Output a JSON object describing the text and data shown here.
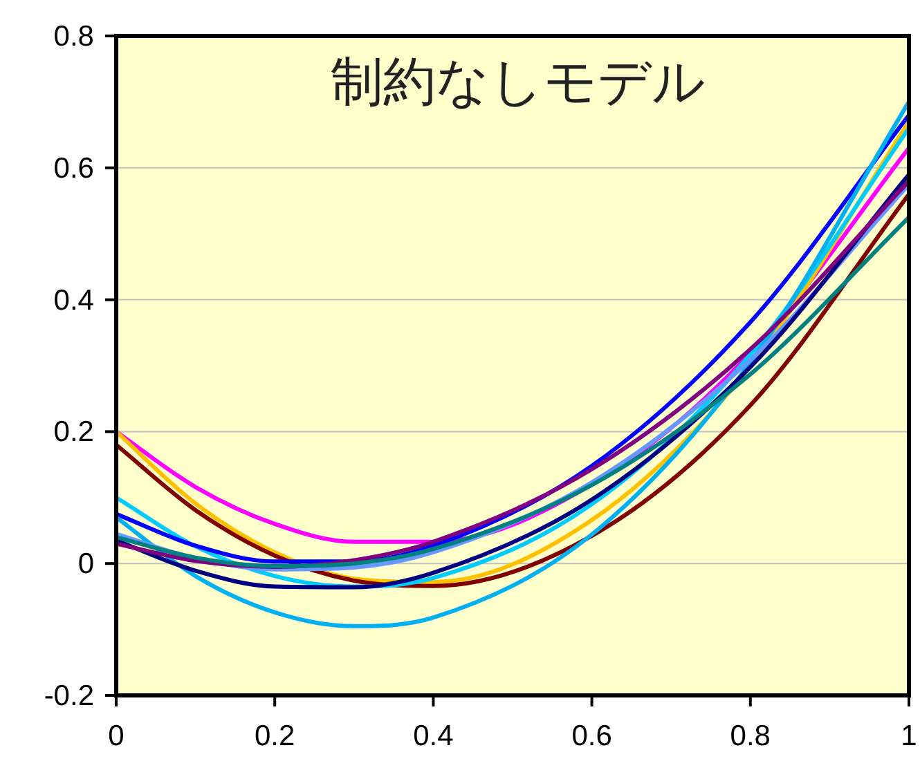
{
  "chart_data": {
    "type": "line",
    "title": "制約なしモデル",
    "x": [
      0,
      0.1,
      0.2,
      0.3,
      0.4,
      0.6,
      0.8,
      1
    ],
    "series": [
      {
        "color": "#ff00ff",
        "values": [
          0.2,
          0.116,
          0.06,
          0.033,
          0.033,
          0.12,
          0.319,
          0.63
        ]
      },
      {
        "color": "#ffc000",
        "values": [
          0.2,
          0.091,
          0.017,
          -0.023,
          -0.028,
          0.066,
          0.299,
          0.67
        ]
      },
      {
        "color": "#800000",
        "values": [
          0.18,
          0.081,
          0.012,
          -0.026,
          -0.034,
          0.042,
          0.24,
          0.56
        ]
      },
      {
        "color": "#00ccff",
        "values": [
          0.1,
          0.026,
          -0.019,
          -0.035,
          -0.022,
          0.09,
          0.317,
          0.66
        ]
      },
      {
        "color": "#0000ff",
        "values": [
          0.075,
          0.027,
          0.003,
          0.003,
          0.027,
          0.148,
          0.366,
          0.68
        ]
      },
      {
        "color": "#00b0f0",
        "values": [
          0.07,
          -0.019,
          -0.074,
          -0.095,
          -0.082,
          0.044,
          0.305,
          0.7
        ]
      },
      {
        "color": "#6699ff",
        "values": [
          0.045,
          0.008,
          -0.009,
          -0.006,
          0.017,
          0.123,
          0.309,
          0.575
        ]
      },
      {
        "color": "#000080",
        "values": [
          0.035,
          -0.011,
          -0.035,
          -0.036,
          -0.014,
          0.097,
          0.298,
          0.59
        ]
      },
      {
        "color": "#800080",
        "values": [
          0.03,
          0.004,
          -0.005,
          0.005,
          0.033,
          0.143,
          0.325,
          0.58
        ]
      },
      {
        "color": "#008080",
        "values": [
          0.04,
          0.009,
          -0.004,
          0.0,
          0.022,
          0.119,
          0.287,
          0.525
        ]
      }
    ],
    "xlim": [
      0,
      1
    ],
    "ylim": [
      -0.2,
      0.8
    ],
    "xticks": [
      0,
      0.2,
      0.4,
      0.6,
      0.8,
      1
    ],
    "yticks": [
      -0.2,
      0,
      0.2,
      0.4,
      0.6,
      0.8
    ],
    "grid": "y",
    "marker": "none",
    "line_style": "solid"
  }
}
